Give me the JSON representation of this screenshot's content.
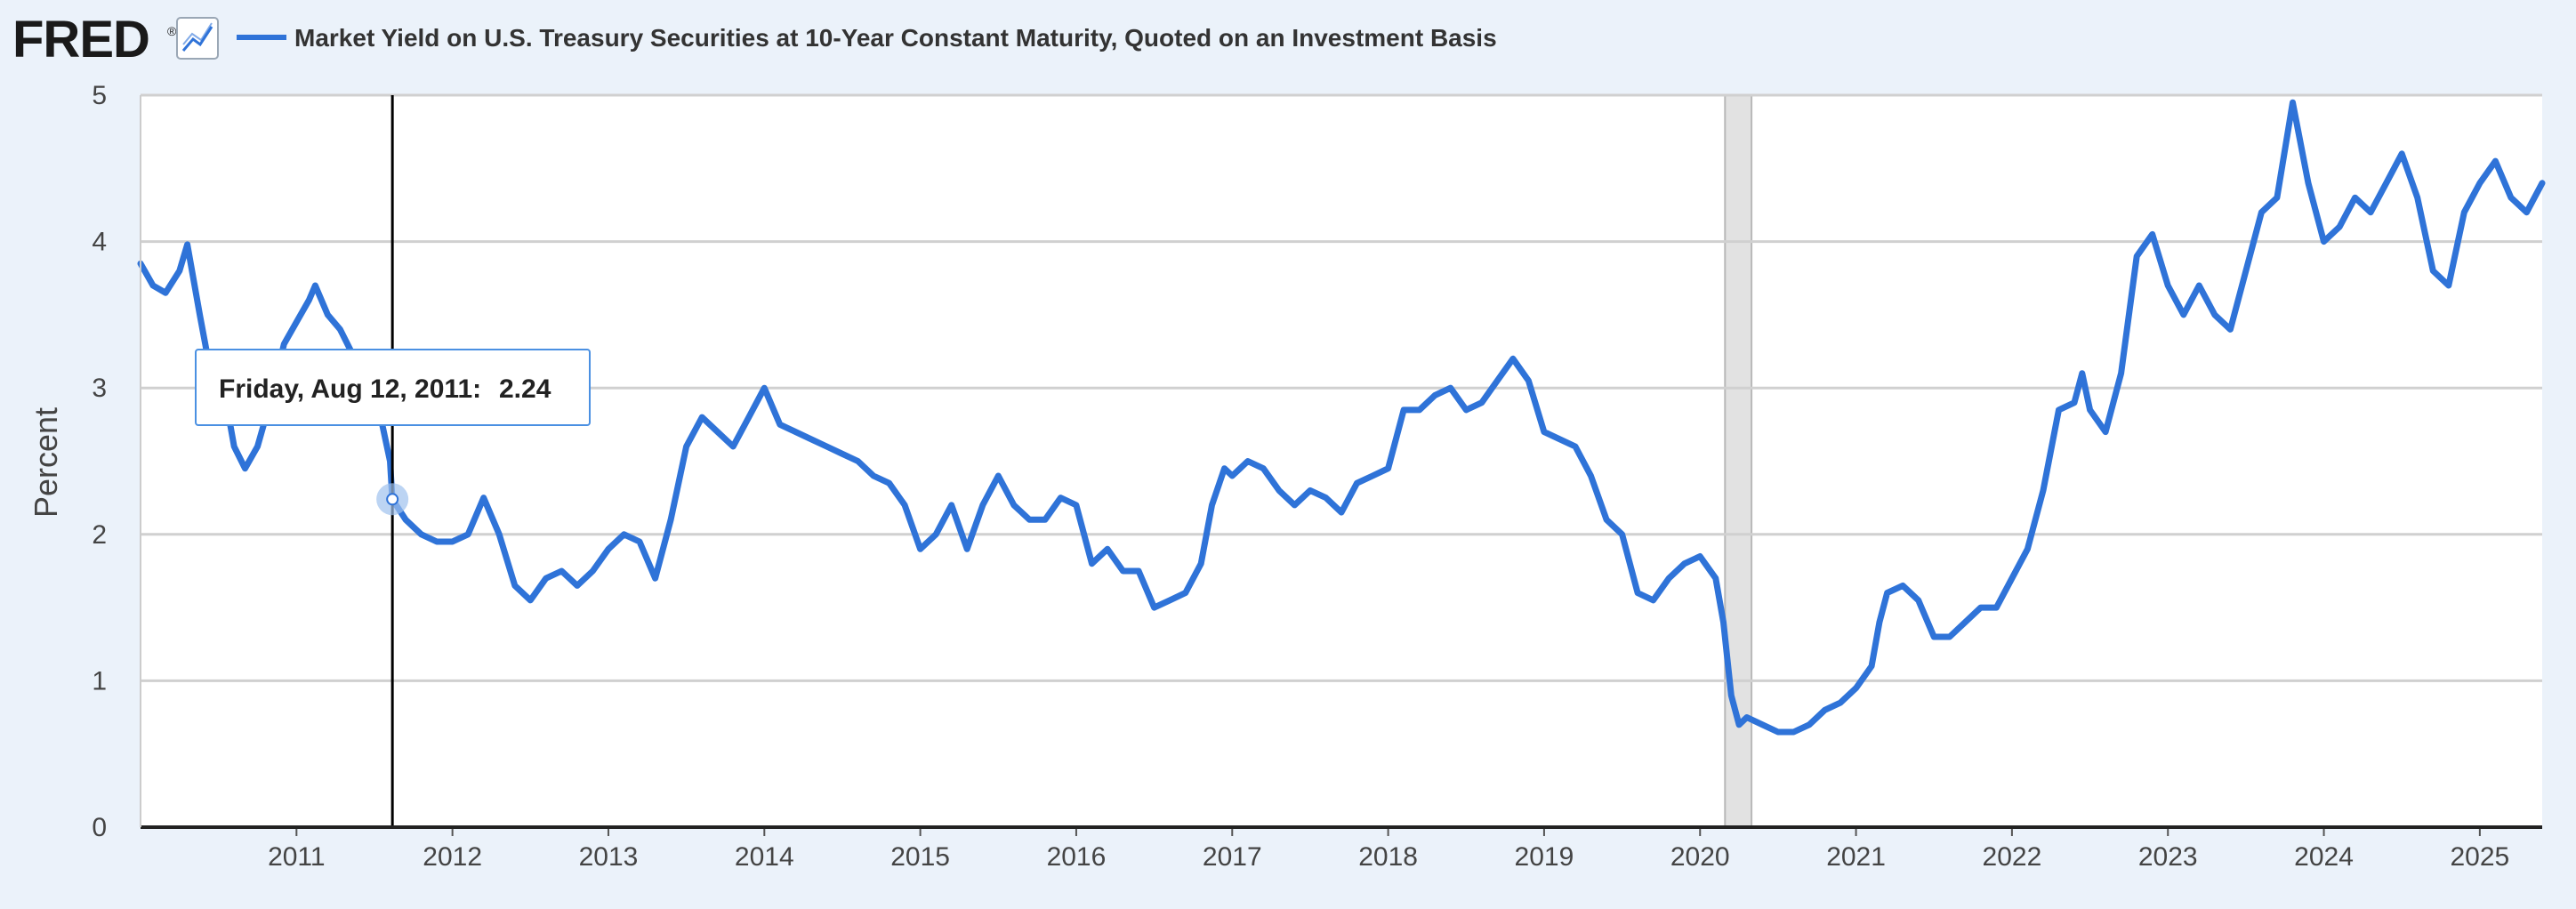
{
  "header": {
    "logo_text": "FRED",
    "logo_registered": "®",
    "series_title": "Market Yield on U.S. Treasury Securities at 10-Year Constant Maturity, Quoted on an Investment Basis"
  },
  "tooltip": {
    "date_label": "Friday, Aug 12, 2011:",
    "value_label": "2.24",
    "x_value": 2011.615,
    "y_value": 2.24
  },
  "recession": {
    "start": 2020.16,
    "end": 2020.33
  },
  "colors": {
    "series": "#2f73d8",
    "grid": "#d0d0d0",
    "background": "#ebf2fa",
    "plot_background": "#ffffff",
    "recession": "#e2e2e2"
  },
  "chart_data": {
    "type": "line",
    "title": "Market Yield on U.S. Treasury Securities at 10-Year Constant Maturity, Quoted on an Investment Basis",
    "xlabel": "",
    "ylabel": "Percent",
    "xlim": [
      2010.0,
      2025.4
    ],
    "ylim": [
      0,
      5
    ],
    "yticks": [
      "0",
      "1",
      "2",
      "3",
      "4",
      "5"
    ],
    "xticks": [
      {
        "label": "2011",
        "value": 2011.0
      },
      {
        "label": "2012",
        "value": 2012.0
      },
      {
        "label": "2013",
        "value": 2013.0
      },
      {
        "label": "2014",
        "value": 2014.0
      },
      {
        "label": "2015",
        "value": 2015.0
      },
      {
        "label": "2016",
        "value": 2016.0
      },
      {
        "label": "2017",
        "value": 2017.0
      },
      {
        "label": "2018",
        "value": 2018.0
      },
      {
        "label": "2019",
        "value": 2019.0
      },
      {
        "label": "2020",
        "value": 2020.0
      },
      {
        "label": "2021",
        "value": 2021.0
      },
      {
        "label": "2022",
        "value": 2022.0
      },
      {
        "label": "2023",
        "value": 2023.0
      },
      {
        "label": "2024",
        "value": 2024.0
      },
      {
        "label": "2025",
        "value": 2025.0
      }
    ],
    "series": [
      {
        "name": "Market Yield on U.S. Treasury Securities at 10-Year Constant Maturity",
        "x": [
          2010.0,
          2010.08,
          2010.16,
          2010.25,
          2010.3,
          2010.38,
          2010.45,
          2010.55,
          2010.6,
          2010.67,
          2010.75,
          2010.83,
          2010.92,
          2011.0,
          2011.08,
          2011.12,
          2011.2,
          2011.28,
          2011.35,
          2011.45,
          2011.52,
          2011.6,
          2011.615,
          2011.7,
          2011.8,
          2011.9,
          2012.0,
          2012.1,
          2012.2,
          2012.3,
          2012.4,
          2012.5,
          2012.6,
          2012.7,
          2012.8,
          2012.9,
          2013.0,
          2013.1,
          2013.2,
          2013.3,
          2013.4,
          2013.5,
          2013.6,
          2013.7,
          2013.8,
          2013.9,
          2014.0,
          2014.1,
          2014.2,
          2014.3,
          2014.4,
          2014.5,
          2014.6,
          2014.7,
          2014.8,
          2014.9,
          2015.0,
          2015.1,
          2015.2,
          2015.3,
          2015.4,
          2015.5,
          2015.6,
          2015.7,
          2015.8,
          2015.9,
          2016.0,
          2016.1,
          2016.2,
          2016.3,
          2016.4,
          2016.5,
          2016.6,
          2016.7,
          2016.8,
          2016.87,
          2016.95,
          2017.0,
          2017.1,
          2017.2,
          2017.3,
          2017.4,
          2017.5,
          2017.6,
          2017.7,
          2017.8,
          2017.9,
          2018.0,
          2018.1,
          2018.2,
          2018.3,
          2018.4,
          2018.5,
          2018.6,
          2018.7,
          2018.8,
          2018.9,
          2019.0,
          2019.1,
          2019.2,
          2019.3,
          2019.4,
          2019.5,
          2019.6,
          2019.7,
          2019.8,
          2019.9,
          2020.0,
          2020.1,
          2020.15,
          2020.2,
          2020.25,
          2020.3,
          2020.4,
          2020.5,
          2020.6,
          2020.7,
          2020.8,
          2020.9,
          2021.0,
          2021.1,
          2021.15,
          2021.2,
          2021.3,
          2021.4,
          2021.5,
          2021.6,
          2021.7,
          2021.8,
          2021.9,
          2022.0,
          2022.1,
          2022.2,
          2022.3,
          2022.4,
          2022.45,
          2022.5,
          2022.6,
          2022.7,
          2022.8,
          2022.9,
          2023.0,
          2023.1,
          2023.2,
          2023.3,
          2023.4,
          2023.5,
          2023.6,
          2023.7,
          2023.8,
          2023.9,
          2024.0,
          2024.1,
          2024.2,
          2024.3,
          2024.4,
          2024.5,
          2024.6,
          2024.7,
          2024.8,
          2024.9,
          2025.0,
          2025.1,
          2025.2,
          2025.3,
          2025.4
        ],
        "values": [
          3.85,
          3.7,
          3.65,
          3.8,
          3.98,
          3.5,
          3.1,
          2.9,
          2.6,
          2.45,
          2.6,
          2.9,
          3.3,
          3.45,
          3.6,
          3.7,
          3.5,
          3.4,
          3.25,
          3.1,
          2.9,
          2.5,
          2.24,
          2.1,
          2.0,
          1.95,
          1.95,
          2.0,
          2.25,
          2.0,
          1.65,
          1.55,
          1.7,
          1.75,
          1.65,
          1.75,
          1.9,
          2.0,
          1.95,
          1.7,
          2.1,
          2.6,
          2.8,
          2.7,
          2.6,
          2.8,
          3.0,
          2.75,
          2.7,
          2.65,
          2.6,
          2.55,
          2.5,
          2.4,
          2.35,
          2.2,
          1.9,
          2.0,
          2.2,
          1.9,
          2.2,
          2.4,
          2.2,
          2.1,
          2.1,
          2.25,
          2.2,
          1.8,
          1.9,
          1.75,
          1.75,
          1.5,
          1.55,
          1.6,
          1.8,
          2.2,
          2.45,
          2.4,
          2.5,
          2.45,
          2.3,
          2.2,
          2.3,
          2.25,
          2.15,
          2.35,
          2.4,
          2.45,
          2.85,
          2.85,
          2.95,
          3.0,
          2.85,
          2.9,
          3.05,
          3.2,
          3.05,
          2.7,
          2.65,
          2.6,
          2.4,
          2.1,
          2.0,
          1.6,
          1.55,
          1.7,
          1.8,
          1.85,
          1.7,
          1.4,
          0.9,
          0.7,
          0.75,
          0.7,
          0.65,
          0.65,
          0.7,
          0.8,
          0.85,
          0.95,
          1.1,
          1.4,
          1.6,
          1.65,
          1.55,
          1.3,
          1.3,
          1.4,
          1.5,
          1.5,
          1.7,
          1.9,
          2.3,
          2.85,
          2.9,
          3.1,
          2.85,
          2.7,
          3.1,
          3.9,
          4.05,
          3.7,
          3.5,
          3.7,
          3.5,
          3.4,
          3.8,
          4.2,
          4.3,
          4.95,
          4.4,
          4.0,
          4.1,
          4.3,
          4.2,
          4.4,
          4.6,
          4.3,
          3.8,
          3.7,
          4.2,
          4.4,
          4.55,
          4.3,
          4.2,
          4.4
        ]
      }
    ]
  }
}
